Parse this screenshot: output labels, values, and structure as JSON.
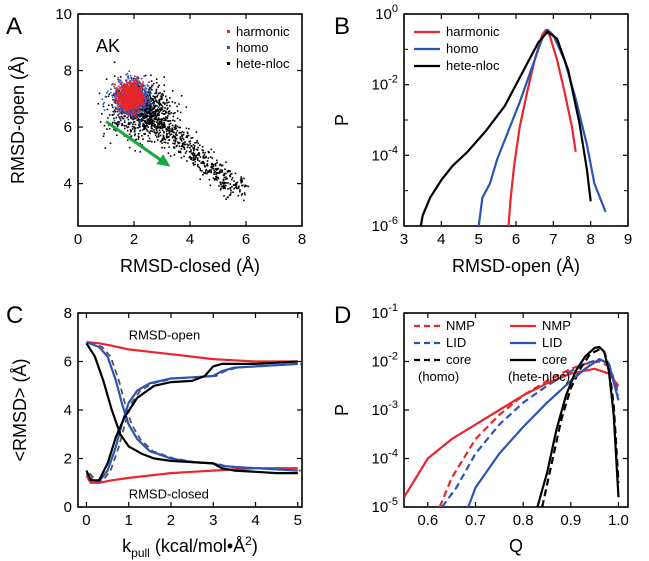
{
  "colors": {
    "harmonic": "#e8262b",
    "homo": "#2a55b5",
    "hete": "#000000",
    "arrow": "#18a83e"
  },
  "chart_data": [
    {
      "panel": "A",
      "type": "scatter",
      "annotation": "AK",
      "xlabel": "RMSD-closed (Å)",
      "ylabel": "RMSD-open (Å)",
      "xlim": [
        0,
        8
      ],
      "ylim": [
        2.5,
        10
      ],
      "xticks": [
        "0",
        "2",
        "4",
        "6",
        "8"
      ],
      "yticks": [
        "4",
        "6",
        "8",
        "10"
      ],
      "series": [
        {
          "name": "hete-nloc",
          "color": "#000000",
          "center": [
            2.3,
            6.6
          ],
          "spread": [
            0.8,
            0.7
          ],
          "tail_to": [
            5.8,
            3.7
          ]
        },
        {
          "name": "homo",
          "color": "#2a55b5",
          "center": [
            1.9,
            7.05
          ],
          "spread": [
            0.45,
            0.45
          ]
        },
        {
          "name": "harmonic",
          "color": "#e8262b",
          "center": [
            1.85,
            7.1
          ],
          "spread": [
            0.3,
            0.35
          ]
        }
      ],
      "arrow": {
        "from": [
          1.0,
          6.2
        ],
        "to": [
          3.3,
          4.6
        ]
      }
    },
    {
      "panel": "B",
      "type": "line",
      "xlabel": "RMSD-open (Å)",
      "ylabel": "P",
      "xlim": [
        3,
        9
      ],
      "ylim": [
        -6,
        0
      ],
      "yscale": "log",
      "xticks": [
        "3",
        "4",
        "5",
        "6",
        "7",
        "8",
        "9"
      ],
      "yticks": [
        "10^-6",
        "10^-4",
        "10^-2",
        "10^0"
      ],
      "series": [
        {
          "name": "harmonic",
          "color": "#e8262b",
          "x": [
            5.8,
            5.85,
            5.95,
            6.1,
            6.3,
            6.5,
            6.7,
            6.8,
            6.9,
            7.1,
            7.3,
            7.5,
            7.6
          ],
          "y": [
            -6.0,
            -5.3,
            -4.3,
            -3.2,
            -2.2,
            -1.3,
            -0.6,
            -0.45,
            -0.6,
            -1.3,
            -2.2,
            -3.2,
            -3.9
          ]
        },
        {
          "name": "homo",
          "color": "#2a55b5",
          "x": [
            5.0,
            5.1,
            5.3,
            5.5,
            5.8,
            6.1,
            6.4,
            6.7,
            6.85,
            7.0,
            7.3,
            7.6,
            7.9,
            8.1,
            8.4
          ],
          "y": [
            -6.0,
            -5.2,
            -4.8,
            -4.1,
            -3.3,
            -2.5,
            -1.6,
            -0.7,
            -0.45,
            -0.6,
            -1.3,
            -2.4,
            -3.7,
            -4.8,
            -5.6
          ]
        },
        {
          "name": "hete-nloc",
          "color": "#000000",
          "x": [
            3.4,
            3.5,
            3.7,
            4.0,
            4.3,
            4.7,
            5.2,
            5.7,
            6.2,
            6.6,
            6.85,
            7.1,
            7.4,
            7.7,
            7.9,
            8.0
          ],
          "y": [
            -6.3,
            -5.7,
            -5.2,
            -4.7,
            -4.3,
            -3.9,
            -3.3,
            -2.6,
            -1.6,
            -0.8,
            -0.5,
            -0.7,
            -1.6,
            -3.1,
            -4.4,
            -5.3
          ]
        }
      ]
    },
    {
      "panel": "C",
      "type": "line",
      "xlabel": "k",
      "xlabel_sub": "pull",
      "xlabel_rest": " (kcal/mol•Å",
      "xlabel_sup": "2",
      "xlabel_end": ")",
      "ylabel": "<RMSD> (Å)",
      "xlim": [
        -0.2,
        5.1
      ],
      "ylim": [
        0,
        8
      ],
      "xticks": [
        "0",
        "1",
        "2",
        "3",
        "4",
        "5"
      ],
      "yticks": [
        "0",
        "2",
        "4",
        "6",
        "8"
      ],
      "annotations": [
        "RMSD-open",
        "RMSD-closed"
      ],
      "series": [
        {
          "name": "harmonic-open",
          "color": "#e8262b",
          "x": [
            0,
            0.3,
            0.6,
            1.0,
            1.5,
            2.0,
            2.5,
            3.0,
            3.5,
            4.0,
            4.5,
            5.0
          ],
          "y": [
            6.8,
            6.75,
            6.65,
            6.5,
            6.4,
            6.3,
            6.2,
            6.1,
            6.05,
            6.0,
            6.0,
            6.0
          ]
        },
        {
          "name": "harmonic-closed",
          "color": "#e8262b",
          "x": [
            0,
            0.1,
            0.3,
            0.6,
            1.0,
            1.5,
            2.0,
            2.5,
            3.0,
            3.5,
            4.0,
            4.5,
            5.0
          ],
          "y": [
            1.3,
            1.0,
            1.0,
            1.1,
            1.2,
            1.3,
            1.4,
            1.45,
            1.5,
            1.55,
            1.6,
            1.6,
            1.6
          ]
        },
        {
          "name": "homo-open",
          "color": "#2a55b5",
          "x": [
            0,
            0.3,
            0.5,
            0.7,
            0.85,
            1.0,
            1.2,
            1.5,
            2.0,
            2.5,
            3.0,
            3.2,
            3.5,
            4.0,
            4.5,
            5.0
          ],
          "y": [
            6.8,
            6.6,
            6.2,
            5.2,
            4.2,
            3.4,
            2.8,
            2.3,
            2.0,
            1.85,
            1.8,
            1.7,
            1.65,
            1.6,
            1.55,
            1.5
          ]
        },
        {
          "name": "homo-closed",
          "color": "#2a55b5",
          "x": [
            0,
            0.15,
            0.3,
            0.5,
            0.7,
            0.85,
            1.0,
            1.2,
            1.5,
            2.0,
            2.5,
            3.0,
            3.2,
            3.5,
            4.0,
            4.5,
            5.0
          ],
          "y": [
            1.4,
            1.1,
            1.05,
            1.5,
            2.5,
            3.5,
            4.3,
            4.8,
            5.1,
            5.3,
            5.35,
            5.4,
            5.6,
            5.75,
            5.8,
            5.85,
            5.9
          ]
        },
        {
          "name": "hete-open",
          "color": "#000000",
          "x": [
            0,
            0.2,
            0.4,
            0.6,
            0.8,
            1.0,
            1.3,
            1.6,
            2.0,
            2.5,
            3.0,
            3.2,
            3.5,
            4.0,
            4.5,
            5.0
          ],
          "y": [
            6.75,
            6.2,
            5.2,
            4.0,
            3.0,
            2.5,
            2.2,
            2.0,
            1.9,
            1.85,
            1.8,
            1.6,
            1.5,
            1.45,
            1.4,
            1.4
          ]
        },
        {
          "name": "hete-closed",
          "color": "#000000",
          "x": [
            0,
            0.1,
            0.3,
            0.5,
            0.7,
            0.9,
            1.2,
            1.6,
            2.0,
            2.5,
            2.8,
            3.0,
            3.2,
            3.5,
            4.0,
            4.5,
            5.0
          ],
          "y": [
            1.5,
            1.1,
            1.1,
            1.8,
            2.9,
            3.7,
            4.5,
            5.0,
            5.15,
            5.2,
            5.4,
            5.8,
            5.9,
            5.9,
            5.9,
            5.95,
            6.0
          ]
        }
      ]
    },
    {
      "panel": "D",
      "type": "line",
      "xlabel": "Q",
      "ylabel": "P",
      "xlim": [
        0.55,
        1.02
      ],
      "ylim": [
        -5,
        -1
      ],
      "yscale": "log",
      "xticks": [
        "0.6",
        "0.7",
        "0.8",
        "0.9",
        "1.0"
      ],
      "yticks": [
        "10^-5",
        "10^-4",
        "10^-3",
        "10^-2",
        "10^-1"
      ],
      "legend_left": {
        "items": [
          "NMP",
          "LID",
          "core"
        ],
        "caption": "(homo)"
      },
      "legend_right": {
        "items": [
          "NMP",
          "LID",
          "core"
        ],
        "caption": "(hete-nloc)"
      },
      "series": [
        {
          "name": "NMP (homo)",
          "color": "#e8262b",
          "dash": true,
          "x": [
            0.625,
            0.65,
            0.7,
            0.75,
            0.8,
            0.85,
            0.9,
            0.93,
            0.96,
            0.98,
            1.0
          ],
          "y": [
            -5.0,
            -4.4,
            -3.6,
            -3.1,
            -2.7,
            -2.4,
            -2.15,
            -2.05,
            -2.0,
            -2.1,
            -2.6
          ]
        },
        {
          "name": "LID (homo)",
          "color": "#2a55b5",
          "dash": true,
          "x": [
            0.63,
            0.66,
            0.7,
            0.75,
            0.8,
            0.85,
            0.9,
            0.93,
            0.96,
            0.98,
            1.0
          ],
          "y": [
            -5.0,
            -4.6,
            -3.9,
            -3.3,
            -2.85,
            -2.5,
            -2.2,
            -2.05,
            -1.95,
            -2.05,
            -2.7
          ]
        },
        {
          "name": "core (homo)",
          "color": "#000000",
          "dash": true,
          "x": [
            0.84,
            0.86,
            0.88,
            0.9,
            0.92,
            0.94,
            0.96,
            0.97,
            0.98,
            0.99,
            1.0
          ],
          "y": [
            -5.0,
            -4.1,
            -3.2,
            -2.55,
            -2.15,
            -1.85,
            -1.75,
            -1.8,
            -2.1,
            -2.9,
            -4.5
          ]
        },
        {
          "name": "NMP (hete-nloc)",
          "color": "#e8262b",
          "dash": false,
          "x": [
            0.55,
            0.6,
            0.65,
            0.7,
            0.75,
            0.8,
            0.85,
            0.9,
            0.95,
            0.98,
            1.0
          ],
          "y": [
            -4.8,
            -4.0,
            -3.6,
            -3.3,
            -3.0,
            -2.7,
            -2.45,
            -2.25,
            -2.15,
            -2.25,
            -2.5
          ]
        },
        {
          "name": "LID (hete-nloc)",
          "color": "#2a55b5",
          "dash": false,
          "x": [
            0.685,
            0.7,
            0.75,
            0.8,
            0.85,
            0.9,
            0.93,
            0.96,
            0.98,
            1.0
          ],
          "y": [
            -5.0,
            -4.6,
            -3.9,
            -3.35,
            -2.85,
            -2.4,
            -2.15,
            -1.95,
            -2.05,
            -2.8
          ]
        },
        {
          "name": "core (hete-nloc)",
          "color": "#000000",
          "dash": false,
          "x": [
            0.83,
            0.85,
            0.87,
            0.89,
            0.91,
            0.93,
            0.95,
            0.96,
            0.97,
            0.98,
            0.99,
            1.0
          ],
          "y": [
            -5.0,
            -4.3,
            -3.4,
            -2.7,
            -2.2,
            -1.9,
            -1.72,
            -1.7,
            -1.8,
            -2.2,
            -3.1,
            -4.8
          ]
        }
      ]
    }
  ],
  "labels": {
    "panel_a": "A",
    "panel_b": "B",
    "panel_c": "C",
    "panel_d": "D",
    "legend_a": [
      "harmonic",
      "homo",
      "hete-nloc"
    ],
    "legend_b": [
      "harmonic",
      "homo",
      "hete-nloc"
    ]
  }
}
